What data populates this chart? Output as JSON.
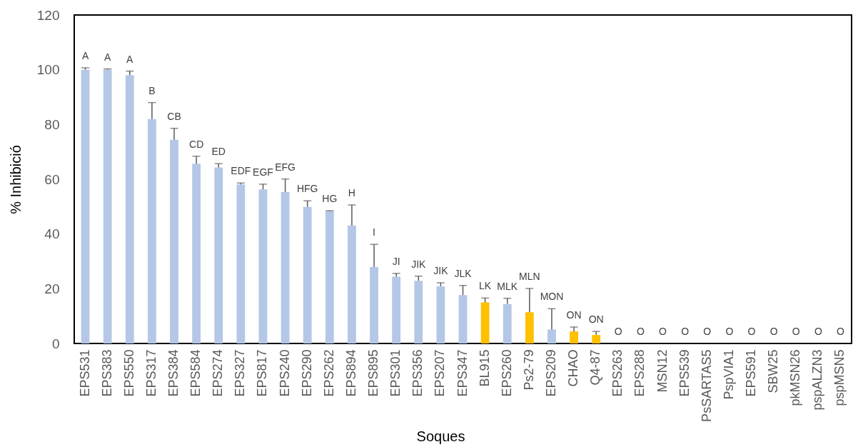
{
  "chart_data": {
    "type": "bar",
    "xlabel": "Soques",
    "ylabel": "% Inhibició",
    "categories": [
      "EPS531",
      "EPS383",
      "EPS550",
      "EPS317",
      "EPS384",
      "EPS584",
      "EPS274",
      "EPS327",
      "EPS817",
      "EPS240",
      "EPS290",
      "EPS262",
      "EPS894",
      "EPS895",
      "EPS301",
      "EPS356",
      "EPS207",
      "EPS347",
      "BL915",
      "EPS260",
      "Ps2-79",
      "EPS209",
      "CHAO",
      "Q4-87",
      "EPS263",
      "EPS288",
      "MSN12",
      "EPS539",
      "PsSARTAS5",
      "PspVIA1",
      "EPS591",
      "SBW25",
      "pkMSN26",
      "pspALZN3",
      "pspMSN5"
    ],
    "values": [
      100,
      100,
      98,
      82,
      74.4,
      65.7,
      64.3,
      58.1,
      56.3,
      55.3,
      49.9,
      48.3,
      43.1,
      27.9,
      24.4,
      22.9,
      20.9,
      17.7,
      15.0,
      14.4,
      11.4,
      5.1,
      4.4,
      3.1,
      0,
      0,
      0,
      0,
      0,
      0,
      0,
      0,
      0,
      0,
      0
    ],
    "colors": [
      "#b4c7e7",
      "#b4c7e7",
      "#b4c7e7",
      "#b4c7e7",
      "#b4c7e7",
      "#b4c7e7",
      "#b4c7e7",
      "#b4c7e7",
      "#b4c7e7",
      "#b4c7e7",
      "#b4c7e7",
      "#b4c7e7",
      "#b4c7e7",
      "#b4c7e7",
      "#b4c7e7",
      "#b4c7e7",
      "#b4c7e7",
      "#b4c7e7",
      "#ffc000",
      "#b4c7e7",
      "#ffc000",
      "#b4c7e7",
      "#ffc000",
      "#ffc000",
      "#b4c7e7",
      "#b4c7e7",
      "#b4c7e7",
      "#b4c7e7",
      "#b4c7e7",
      "#b4c7e7",
      "#b4c7e7",
      "#b4c7e7",
      "#b4c7e7",
      "#b4c7e7",
      "#b4c7e7"
    ],
    "errors": [
      [
        100,
        100.7
      ],
      [
        100,
        100.3
      ],
      [
        98,
        99.5
      ],
      [
        82,
        88
      ],
      [
        74.4,
        78.6
      ],
      [
        65.7,
        68.4
      ],
      [
        64.3,
        65.7
      ],
      [
        58.1,
        58.6
      ],
      [
        56.3,
        58.2
      ],
      [
        55.3,
        60.1
      ],
      [
        49.9,
        52.1
      ],
      [
        48.3,
        48.5
      ],
      [
        43.1,
        50.6
      ],
      [
        27.9,
        36.2
      ],
      [
        24.4,
        25.6
      ],
      [
        22.9,
        24.6
      ],
      [
        20.9,
        22.2
      ],
      [
        17.7,
        21.2
      ],
      [
        15.0,
        16.6
      ],
      [
        14.4,
        16.5
      ],
      [
        11.4,
        20.1
      ],
      [
        5.1,
        12.7
      ],
      [
        4.4,
        6.0
      ],
      [
        3.1,
        4.4
      ],
      null,
      null,
      null,
      null,
      null,
      null,
      null,
      null,
      null,
      null,
      null
    ],
    "annotations": [
      {
        "text": "A",
        "x": "EPS531",
        "y": 100.7
      },
      {
        "text": "A",
        "x": "EPS383",
        "y": 100.3
      },
      {
        "text": "A",
        "x": "EPS550",
        "y": 99.5
      },
      {
        "text": "B",
        "x": "EPS317",
        "y": 88
      },
      {
        "text": "CB",
        "x": "EPS384",
        "y": 78.6
      },
      {
        "text": "CD",
        "x": "EPS584",
        "y": 68.4
      },
      {
        "text": "ED",
        "x": "EPS274",
        "y": 65.7
      },
      {
        "text": "EDF",
        "x": "EPS327",
        "y": 58.6
      },
      {
        "text": "EGF",
        "x": "EPS817",
        "y": 58.2
      },
      {
        "text": "EFG",
        "x": "EPS240",
        "y": 60.1
      },
      {
        "text": "HFG",
        "x": "EPS290",
        "y": 52.1
      },
      {
        "text": "HG",
        "x": "EPS262",
        "y": 48.5
      },
      {
        "text": "H",
        "x": "EPS894",
        "y": 50.6
      },
      {
        "text": "I",
        "x": "EPS895",
        "y": 36.2
      },
      {
        "text": "JI",
        "x": "EPS301",
        "y": 25.6
      },
      {
        "text": "JIK",
        "x": "EPS356",
        "y": 24.6
      },
      {
        "text": "JIK",
        "x": "EPS207",
        "y": 22.2
      },
      {
        "text": "JLK",
        "x": "EPS347",
        "y": 21.2
      },
      {
        "text": "LK",
        "x": "BL915",
        "y": 16.6
      },
      {
        "text": "MLK",
        "x": "EPS260",
        "y": 16.5
      },
      {
        "text": "MLN",
        "x": "Ps2-79",
        "y": 20.1
      },
      {
        "text": "MON",
        "x": "EPS209",
        "y": 12.7
      },
      {
        "text": "ON",
        "x": "CHAO",
        "y": 6.0
      },
      {
        "text": "ON",
        "x": "Q4-87",
        "y": 4.4
      },
      {
        "text": "O",
        "x": "EPS263",
        "y": 0
      },
      {
        "text": "O",
        "x": "EPS288",
        "y": 0
      },
      {
        "text": "O",
        "x": "MSN12",
        "y": 0
      },
      {
        "text": "O",
        "x": "EPS539",
        "y": 0
      },
      {
        "text": "O",
        "x": "PsSARTAS5",
        "y": 0
      },
      {
        "text": "O",
        "x": "PspVIA1",
        "y": 0
      },
      {
        "text": "O",
        "x": "EPS591",
        "y": 0
      },
      {
        "text": "O",
        "x": "SBW25",
        "y": 0
      },
      {
        "text": "O",
        "x": "pkMSN26",
        "y": 0
      },
      {
        "text": "O",
        "x": "pspALZN3",
        "y": 0
      },
      {
        "text": "O",
        "x": "pspMSN5",
        "y": 0
      }
    ],
    "ylim": [
      0,
      120
    ],
    "yticks": [
      0,
      20,
      40,
      60,
      80,
      100,
      120
    ]
  }
}
